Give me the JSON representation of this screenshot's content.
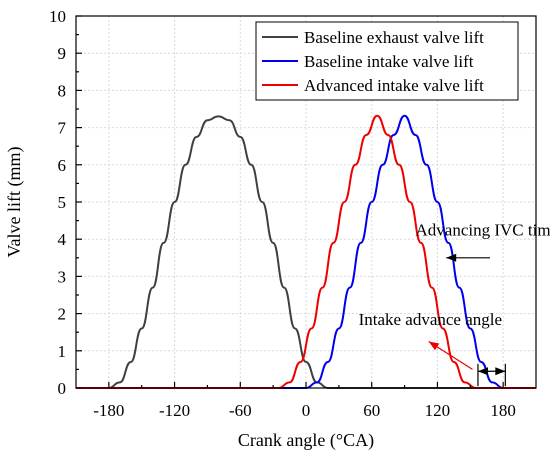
{
  "chart_data": {
    "type": "line",
    "title": "",
    "xlabel": "Crank angle (°CA)",
    "ylabel": "Valve lift (mm)",
    "xlim": [
      -210,
      210
    ],
    "ylim": [
      0,
      10
    ],
    "xticks": [
      -180,
      -120,
      -60,
      0,
      60,
      120,
      180
    ],
    "yticks": [
      0,
      1,
      2,
      3,
      4,
      5,
      6,
      7,
      8,
      9,
      10
    ],
    "grid": true,
    "legend_position": "top-right",
    "series": [
      {
        "name": "Baseline exhaust valve lift",
        "color": "#404040",
        "x": [
          -210,
          -180,
          -170,
          -160,
          -150,
          -140,
          -130,
          -120,
          -110,
          -100,
          -90,
          -80,
          -70,
          -60,
          -50,
          -40,
          -30,
          -20,
          -10,
          0,
          10,
          20,
          30,
          210
        ],
        "y": [
          0,
          0,
          0.15,
          0.7,
          1.6,
          2.7,
          3.9,
          5.0,
          6.0,
          6.75,
          7.2,
          7.3,
          7.2,
          6.75,
          6.0,
          5.0,
          3.9,
          2.7,
          1.6,
          0.7,
          0.15,
          0,
          0,
          0
        ]
      },
      {
        "name": "Baseline intake valve lift",
        "color": "#0000ee",
        "x": [
          -210,
          0,
          10,
          20,
          30,
          40,
          50,
          60,
          70,
          80,
          90,
          100,
          110,
          120,
          130,
          140,
          150,
          160,
          170,
          180,
          210
        ],
        "y": [
          0,
          0,
          0.15,
          0.7,
          1.6,
          2.7,
          3.9,
          5.0,
          6.0,
          6.8,
          7.32,
          6.8,
          6.0,
          5.0,
          3.9,
          2.7,
          1.6,
          0.7,
          0.15,
          0,
          0
        ]
      },
      {
        "name": "Advanced intake valve lift",
        "color": "#ee0000",
        "x": [
          -210,
          -25,
          -15,
          -5,
          5,
          15,
          25,
          35,
          45,
          55,
          65,
          75,
          85,
          95,
          105,
          115,
          125,
          135,
          145,
          155,
          210
        ],
        "y": [
          0,
          0,
          0.15,
          0.7,
          1.6,
          2.7,
          3.9,
          5.0,
          6.0,
          6.8,
          7.32,
          6.8,
          6.0,
          5.0,
          3.9,
          2.7,
          1.6,
          0.7,
          0.15,
          0,
          0
        ]
      }
    ],
    "annotations": [
      {
        "id": "ivc",
        "text": "Advancing IVC timing",
        "text_at": [
          100,
          4.1
        ]
      },
      {
        "id": "advance",
        "text": "Intake advance angle",
        "text_at": [
          48,
          1.7
        ]
      }
    ],
    "arrows": [
      {
        "id": "ivc-arrow",
        "from": [
          168,
          3.5
        ],
        "to": [
          128,
          3.5
        ]
      },
      {
        "id": "advance-arrow",
        "from": [
          152,
          0.5
        ],
        "to": [
          112,
          1.25
        ]
      },
      {
        "id": "dim-arrow",
        "from": [
          157,
          0.45
        ],
        "to": [
          182,
          0.45
        ]
      }
    ]
  }
}
